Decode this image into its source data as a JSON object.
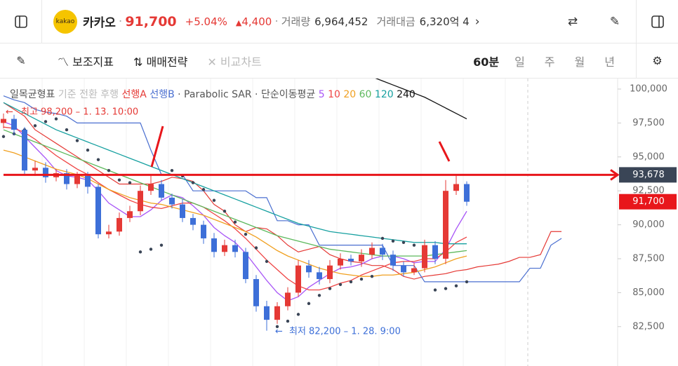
{
  "header": {
    "name": "카카오",
    "logo": "kakao",
    "price": "91,700",
    "change_pct": "+5.04%",
    "change": "4,400",
    "volume_label": "거래량",
    "volume": "6,964,452",
    "amount_label": "거래대금",
    "amount": "6,320억 4"
  },
  "toolbar": {
    "tools": [
      "보조지표",
      "매매전략",
      "비교차트"
    ],
    "periods": [
      "60분",
      "일",
      "주",
      "월",
      "년"
    ]
  },
  "chart_data": {
    "type": "candlestick",
    "open": [
      97500,
      97800,
      97000,
      94000,
      94200,
      93500,
      93800,
      93000,
      93600,
      92800,
      89300,
      89500,
      90500,
      91000,
      92500,
      93000,
      92000,
      91500,
      90500,
      90000,
      89000,
      88000,
      88500,
      88000,
      86000,
      84000,
      83000,
      84000,
      85000,
      87000,
      86500,
      86000,
      87000,
      87500,
      87300,
      87800,
      88300,
      87800,
      87000,
      86500,
      86800,
      88500,
      87500,
      92500,
      93000
    ],
    "high": [
      98200,
      98100,
      97200,
      94700,
      94600,
      94100,
      94100,
      93900,
      93900,
      93000,
      90000,
      90900,
      91400,
      92900,
      93700,
      93300,
      92300,
      91900,
      90800,
      90300,
      89400,
      88900,
      88900,
      88300,
      86300,
      84400,
      84300,
      85400,
      87400,
      87400,
      86900,
      87400,
      87900,
      87800,
      88200,
      88700,
      88600,
      88100,
      87300,
      87200,
      88900,
      88800,
      93300,
      93678,
      93200
    ],
    "low": [
      97100,
      96600,
      93700,
      93600,
      93100,
      93200,
      92600,
      92700,
      92300,
      89000,
      89000,
      89200,
      90200,
      90700,
      92200,
      91800,
      91200,
      90200,
      89600,
      88600,
      87600,
      87700,
      87600,
      85700,
      83600,
      82200,
      82700,
      83700,
      84700,
      86100,
      85600,
      85700,
      86700,
      87000,
      86900,
      87500,
      87400,
      86600,
      86200,
      86300,
      86500,
      87100,
      87100,
      92200,
      91400
    ],
    "close": [
      97800,
      97000,
      94000,
      94200,
      93500,
      93800,
      93000,
      93600,
      92800,
      89300,
      89500,
      90500,
      91000,
      92500,
      93000,
      92000,
      91500,
      90500,
      90000,
      89000,
      88000,
      88500,
      88000,
      86000,
      84000,
      83000,
      84000,
      85000,
      87000,
      86500,
      86000,
      87000,
      87500,
      87300,
      87800,
      88300,
      87800,
      87000,
      86500,
      86800,
      88500,
      87500,
      92500,
      93000,
      91700
    ],
    "up_color": "#e53935",
    "down_color": "#3d6fd8",
    "ichimoku": {
      "name": "일목균형표",
      "labels": [
        "기준",
        "전환",
        "후행"
      ],
      "series": [
        {
          "name": "선행A",
          "color": "#e53935",
          "values": [
            99000,
            98500,
            98000,
            97000,
            96500,
            96000,
            95500,
            95000,
            94500,
            94000,
            93500,
            93000,
            93000,
            93000,
            93000,
            93200,
            93500,
            93400,
            93200,
            92500,
            91500,
            91000,
            90000,
            89500,
            89800,
            89700,
            89200,
            88500,
            88000,
            88200,
            88400,
            87800,
            87500,
            87300,
            87200,
            87000,
            87000,
            86700,
            86200,
            86000,
            86200,
            86300,
            86400,
            86600,
            86700,
            86900,
            87000,
            87100,
            87300,
            87600,
            87600,
            87800,
            89500,
            89500
          ]
        },
        {
          "name": "선행B",
          "color": "#4a6fd0",
          "values": [
            99500,
            99200,
            99000,
            98500,
            98300,
            98200,
            98000,
            97500,
            97500,
            97500,
            97500,
            97500,
            97500,
            97500,
            95500,
            93700,
            93700,
            93700,
            92500,
            92500,
            92500,
            92500,
            92500,
            92500,
            92000,
            92000,
            90300,
            90300,
            90000,
            90000,
            88500,
            88500,
            88500,
            88500,
            88500,
            88500,
            88500,
            87000,
            87000,
            87000,
            85800,
            85800,
            85800,
            85800,
            85800,
            85800,
            85800,
            85800,
            85800,
            85800,
            86800,
            86800,
            88500,
            89000
          ]
        }
      ]
    },
    "sar": {
      "name": "Parabolic SAR",
      "color": "#3a4556",
      "values": [
        96500,
        96700,
        97000,
        97300,
        97600,
        97800,
        97000,
        96200,
        95500,
        94800,
        94000,
        93300,
        93100,
        88000,
        88200,
        88500,
        94000,
        93600,
        93100,
        92600,
        91800,
        91000,
        90200,
        89300,
        88300,
        87300,
        82500,
        82900,
        83400,
        84200,
        84800,
        85300,
        85600,
        85800,
        86000,
        86200,
        89000,
        88800,
        88700,
        88500,
        88300,
        85200,
        85300,
        85500,
        85800
      ]
    },
    "ma_title": "단순이동평균",
    "series": [
      {
        "name": "5",
        "color": "#a855f7",
        "values": [
          97600,
          97300,
          96500,
          95700,
          94900,
          94000,
          93600,
          93500,
          93300,
          92500,
          91600,
          91100,
          90600,
          90600,
          91100,
          91800,
          92200,
          92000,
          91400,
          90700,
          89800,
          89200,
          88700,
          87900,
          86900,
          85900,
          85000,
          84400,
          84700,
          85400,
          85900,
          86400,
          86800,
          86900,
          87100,
          87500,
          87700,
          87700,
          87500,
          87200,
          87300,
          87300,
          88200,
          89700,
          91000
        ]
      },
      {
        "name": "10",
        "color": "#ef4444",
        "values": [
          97200,
          97100,
          96800,
          96300,
          95700,
          95100,
          94600,
          94100,
          93700,
          93100,
          92600,
          92200,
          91800,
          91500,
          91300,
          91200,
          91400,
          91600,
          91600,
          91300,
          90800,
          90300,
          89700,
          89000,
          88200,
          87400,
          86700,
          86000,
          85500,
          85200,
          85200,
          85400,
          85700,
          85900,
          86300,
          86600,
          86900,
          87200,
          87300,
          87300,
          87500,
          87500,
          88000,
          88700,
          89100
        ]
      },
      {
        "name": "20",
        "color": "#f0a020",
        "values": [
          95500,
          95300,
          95000,
          94700,
          94400,
          94100,
          93900,
          93700,
          93400,
          93000,
          92600,
          92300,
          92000,
          91800,
          91600,
          91500,
          91300,
          91100,
          90900,
          90700,
          90400,
          90100,
          89800,
          89500,
          89100,
          88600,
          88100,
          87700,
          87400,
          87100,
          86800,
          86600,
          86400,
          86300,
          86200,
          86200,
          86300,
          86300,
          86400,
          86500,
          86700,
          86900,
          87200,
          87500,
          87700
        ]
      },
      {
        "name": "60",
        "color": "#5cb85c",
        "values": [
          97000,
          96700,
          96400,
          96100,
          95800,
          95500,
          95200,
          94900,
          94600,
          94300,
          94000,
          93700,
          93400,
          93100,
          92800,
          92500,
          92200,
          91900,
          91600,
          91300,
          91000,
          90700,
          90400,
          90100,
          89800,
          89500,
          89200,
          89000,
          88800,
          88600,
          88400,
          88200,
          88100,
          88000,
          87900,
          87800,
          87700,
          87700,
          87700,
          87700,
          87700,
          87800,
          87900,
          88000,
          88100
        ]
      },
      {
        "name": "120",
        "color": "#16a0a0",
        "values": [
          99000,
          98600,
          98200,
          97800,
          97400,
          97000,
          96700,
          96400,
          96100,
          95800,
          95500,
          95200,
          94900,
          94600,
          94300,
          94000,
          93700,
          93400,
          93100,
          92800,
          92500,
          92200,
          91900,
          91600,
          91300,
          91000,
          90700,
          90400,
          90100,
          89900,
          89700,
          89500,
          89400,
          89300,
          89200,
          89100,
          89000,
          88900,
          88800,
          88700,
          88700,
          88700,
          88600,
          88600,
          88600
        ]
      },
      {
        "name": "240",
        "color": "#111111",
        "values": [
          null,
          null,
          null,
          null,
          null,
          null,
          null,
          null,
          null,
          null,
          null,
          null,
          null,
          null,
          null,
          null,
          null,
          null,
          null,
          null,
          null,
          null,
          null,
          null,
          null,
          null,
          null,
          null,
          null,
          null,
          null,
          null,
          null,
          null,
          null,
          100900,
          100600,
          100300,
          100000,
          99700,
          99400,
          99000,
          98600,
          98200,
          97800
        ]
      }
    ],
    "high_label": "최고 98,200 – 1. 13. 10:00",
    "low_label": "최저 82,200 – 1. 28. 9:00",
    "price_line": {
      "value": 93678,
      "label": "93,678",
      "color": "#e8161b"
    },
    "last": {
      "value": 91700,
      "label": "91,700"
    },
    "ylim": [
      80000,
      101100
    ],
    "yticks": [
      {
        "value": 100000,
        "label": "100,000"
      },
      {
        "value": 97500,
        "label": "97,500"
      },
      {
        "value": 95000,
        "label": "95,000"
      },
      {
        "value": 92500,
        "label": "92,500"
      },
      {
        "value": 90000,
        "label": "90,000"
      },
      {
        "value": 87500,
        "label": "87,500"
      },
      {
        "value": 85000,
        "label": "85,000"
      },
      {
        "value": 82500,
        "label": "82,500"
      }
    ]
  }
}
